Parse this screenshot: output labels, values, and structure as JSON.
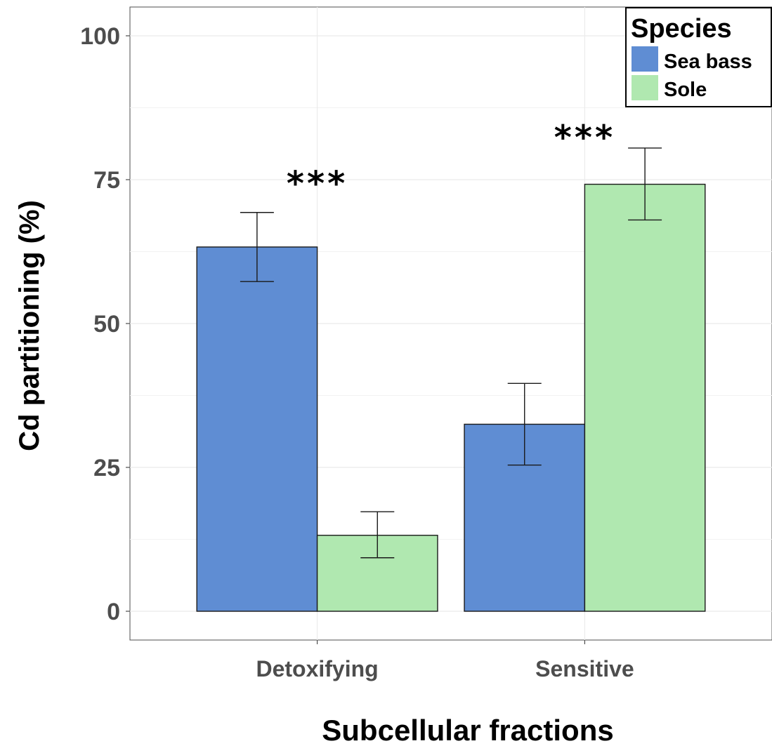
{
  "chart_data": {
    "type": "bar",
    "title": "",
    "xlabel": "Subcellular fractions",
    "ylabel": "Cd partitioning (%)",
    "categories": [
      "Detoxifying",
      "Sensitive"
    ],
    "ylim": [
      -5,
      105
    ],
    "yticks": [
      0,
      25,
      50,
      75,
      100
    ],
    "yticks_labels": [
      "0",
      "25",
      "50",
      "75",
      "100"
    ],
    "grid": true,
    "series": [
      {
        "name": "Sea bass",
        "color": "#5f8dd3",
        "values": [
          63.3,
          32.5
        ],
        "error_low": [
          57.3,
          25.4
        ],
        "error_high": [
          69.3,
          39.6
        ]
      },
      {
        "name": "Sole",
        "color": "#b0e8b0",
        "values": [
          13.2,
          74.2
        ],
        "error_low": [
          9.3,
          68.0
        ],
        "error_high": [
          17.3,
          80.5
        ]
      }
    ],
    "annotations": [
      {
        "category": "Detoxifying",
        "text": "***",
        "y": 75
      },
      {
        "category": "Sensitive",
        "text": "***",
        "y": 83
      }
    ],
    "legend": {
      "title": "Species",
      "placement": "top-right"
    }
  }
}
